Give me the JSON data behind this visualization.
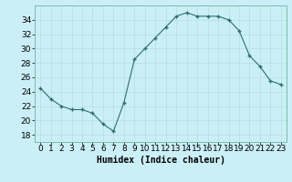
{
  "x": [
    0,
    1,
    2,
    3,
    4,
    5,
    6,
    7,
    8,
    9,
    10,
    11,
    12,
    13,
    14,
    15,
    16,
    17,
    18,
    19,
    20,
    21,
    22,
    23
  ],
  "y": [
    24.5,
    23.0,
    22.0,
    21.5,
    21.5,
    21.0,
    19.5,
    18.5,
    22.5,
    28.5,
    30.0,
    31.5,
    33.0,
    34.5,
    35.0,
    34.5,
    34.5,
    34.5,
    34.0,
    32.5,
    29.0,
    27.5,
    25.5,
    25.0
  ],
  "line_color": "#2d6e6e",
  "marker_color": "#2d6e6e",
  "bg_color": "#cbeff7",
  "grid_color": "#b8dede",
  "border_color": "#7abaaa",
  "xlabel": "Humidex (Indice chaleur)",
  "ylabel_ticks": [
    18,
    20,
    22,
    24,
    26,
    28,
    30,
    32,
    34
  ],
  "ylim": [
    17,
    36
  ],
  "xlim": [
    -0.5,
    23.5
  ],
  "xlabel_fontsize": 7,
  "tick_fontsize": 6.5,
  "title": ""
}
